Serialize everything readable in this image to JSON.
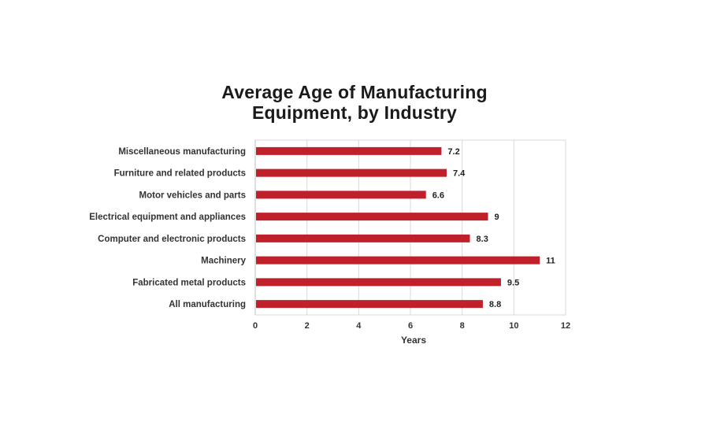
{
  "chart_data": {
    "type": "bar",
    "orientation": "horizontal",
    "title_lines": [
      "Average Age of Manufacturing",
      "Equipment, by Industry"
    ],
    "categories": [
      "Miscellaneous manufacturing",
      "Furniture and related products",
      "Motor vehicles and parts",
      "Electrical equipment and appliances",
      "Computer and electronic products",
      "Machinery",
      "Fabricated metal products",
      "All manufacturing"
    ],
    "values": [
      7.2,
      7.4,
      6.6,
      9,
      8.3,
      11,
      9.5,
      8.8
    ],
    "value_labels": [
      "7.2",
      "7.4",
      "6.6",
      "9",
      "8.3",
      "11",
      "9.5",
      "8.8"
    ],
    "xlabel": "Years",
    "ylabel": "",
    "xlim": [
      0,
      12
    ],
    "xticks": [
      0,
      2,
      4,
      6,
      8,
      10,
      12
    ],
    "grid": "vertical",
    "legend": "none",
    "bar_color": "#c0202a"
  }
}
